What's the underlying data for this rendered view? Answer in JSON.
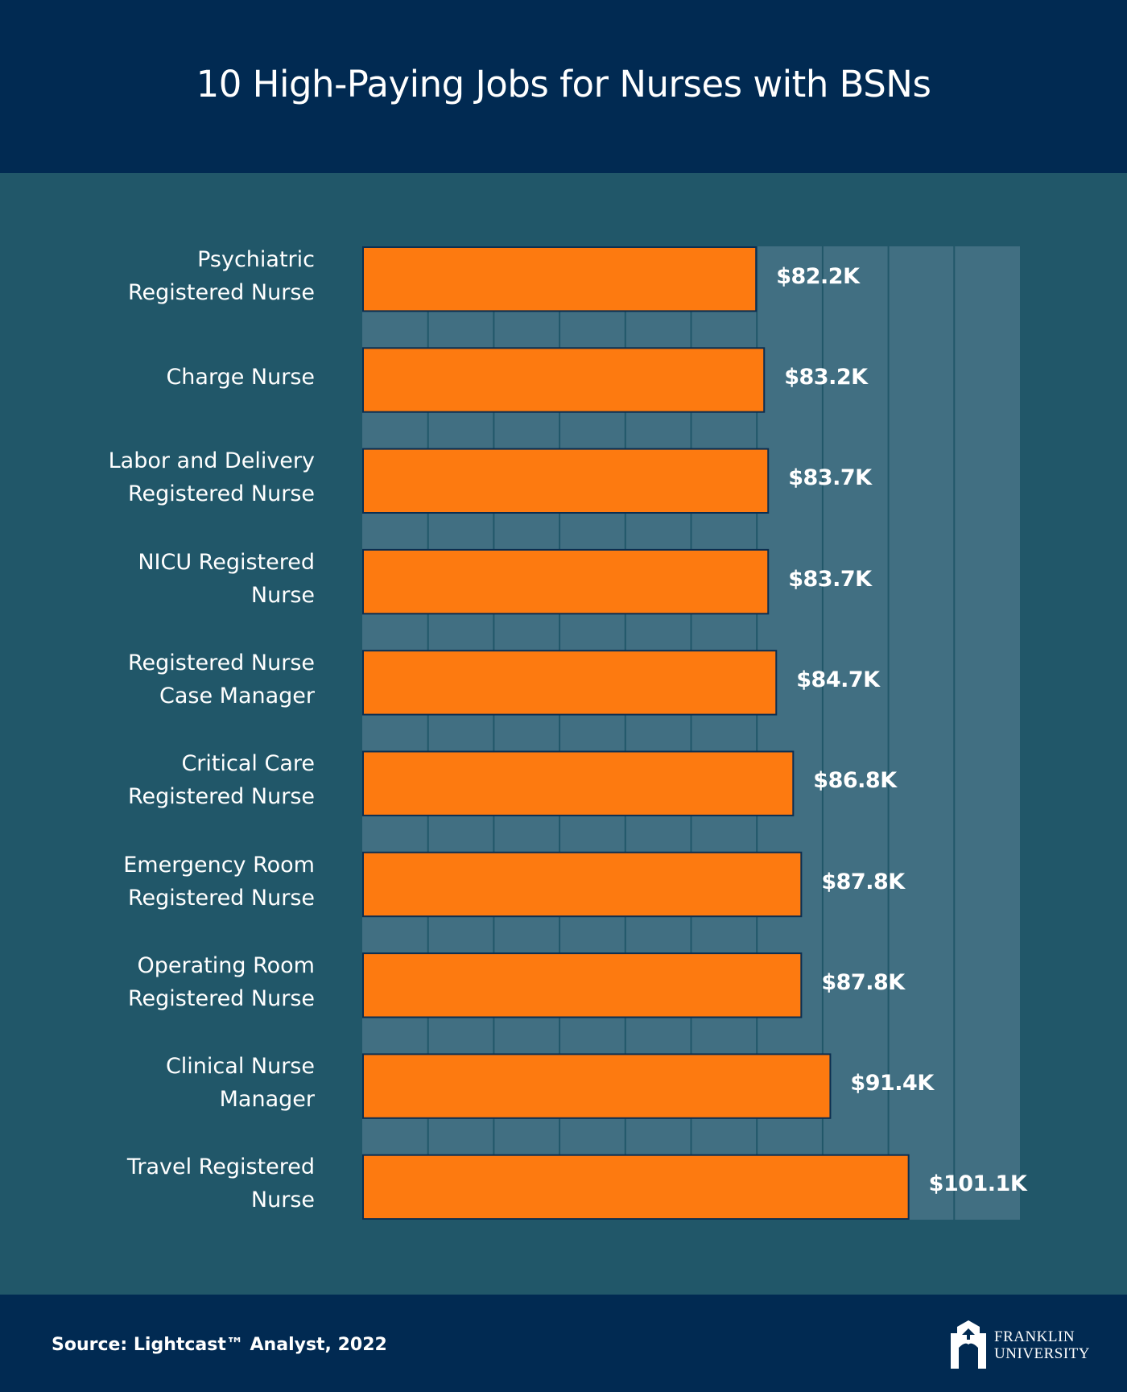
{
  "header": {
    "title": "10 High-Paying Jobs for Nurses with BSNs"
  },
  "chart_data": {
    "type": "bar",
    "orientation": "horizontal",
    "title": "10 High-Paying Jobs for Nurses with BSNs",
    "categories": [
      [
        "Psychiatric",
        "Registered Nurse"
      ],
      [
        "Charge Nurse"
      ],
      [
        "Labor and Delivery",
        "Registered Nurse"
      ],
      [
        "NICU Registered",
        "Nurse"
      ],
      [
        "Registered Nurse",
        "Case Manager"
      ],
      [
        "Critical Care",
        "Registered Nurse"
      ],
      [
        "Emergency Room",
        "Registered Nurse"
      ],
      [
        "Operating Room",
        "Registered Nurse"
      ],
      [
        "Clinical Nurse",
        "Manager"
      ],
      [
        "Travel Registered",
        "Nurse"
      ]
    ],
    "values": [
      82.2,
      83.2,
      83.7,
      83.7,
      84.7,
      86.8,
      87.8,
      87.8,
      91.4,
      101.1
    ],
    "data_labels": [
      "$82.2K",
      "$83.2K",
      "$83.7K",
      "$83.7K",
      "$84.7K",
      "$86.8K",
      "$87.8K",
      "$87.8K",
      "$91.4K",
      "$101.1K"
    ],
    "unit": "thousand USD",
    "xlim": [
      33.4,
      114.9
    ],
    "grid": true,
    "bar_color": "#fd7a10",
    "plot_bg": "#416f82",
    "page_bg": "#215769"
  },
  "footer": {
    "source": "Source: Lightcast™ Analyst, 2022",
    "logo": {
      "line1": "FRANKLIN",
      "line2": "UNIVERSITY"
    }
  }
}
